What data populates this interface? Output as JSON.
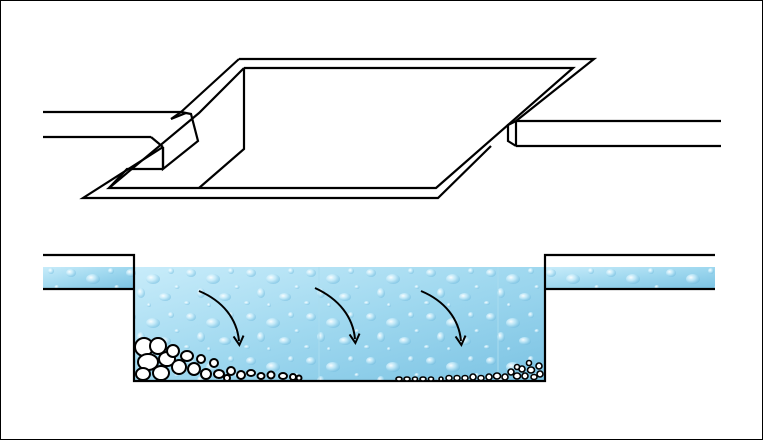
{
  "diagram": {
    "colors": {
      "outline": "#000000",
      "background": "#ffffff",
      "water_light": "#bfe6f6",
      "water_mid": "#8fd0ea",
      "water_dark": "#5fb2d6",
      "bubble": "#e8f8ff"
    },
    "plan_view": {
      "component": "channel-with-settling-basin"
    },
    "section_view": {
      "component": "settling-basin-cross-section",
      "flow_arrows": 3,
      "sediment": "gravel-deposits"
    }
  }
}
